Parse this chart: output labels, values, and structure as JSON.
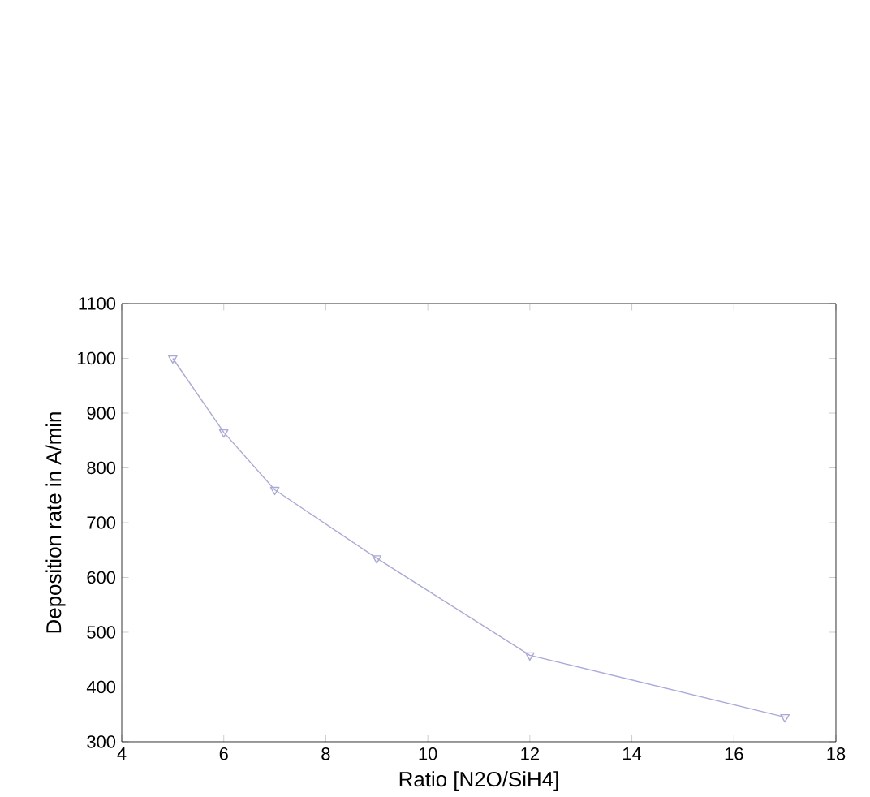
{
  "chart_data": {
    "type": "line",
    "xlabel": "Ratio [N2O/SiH4]",
    "ylabel": "Deposition rate in A/min",
    "x": [
      5,
      6,
      7,
      9,
      12,
      17
    ],
    "series": [
      {
        "color": "#a9a9dc",
        "values": [
          1000,
          865,
          760,
          635,
          458,
          345
        ]
      }
    ],
    "xlim": [
      4,
      18
    ],
    "xticks": [
      4,
      6,
      8,
      10,
      12,
      14,
      16,
      18
    ],
    "ylim": [
      300,
      1100
    ],
    "yticks": [
      300,
      400,
      500,
      600,
      700,
      800,
      900,
      1000,
      1100
    ],
    "marker": "triangle",
    "line_style": "solid",
    "grid": false
  }
}
